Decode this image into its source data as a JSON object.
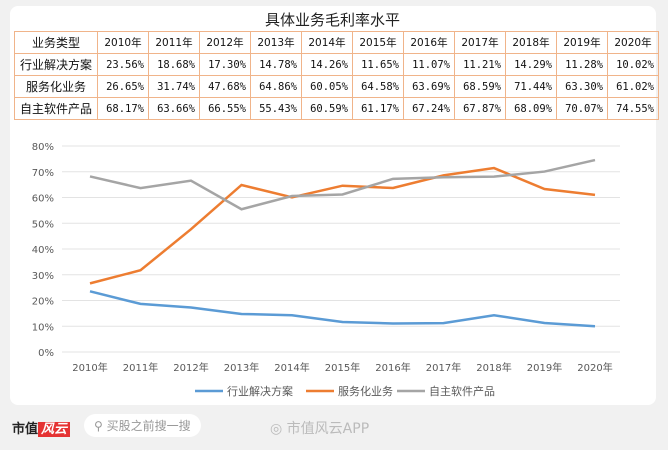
{
  "chart_data": {
    "type": "line",
    "title": "具体业务毛利率水平",
    "categories": [
      "2010年",
      "2011年",
      "2012年",
      "2013年",
      "2014年",
      "2015年",
      "2016年",
      "2017年",
      "2018年",
      "2019年",
      "2020年"
    ],
    "ylim": [
      0,
      80
    ],
    "yticks": [
      "0%",
      "10%",
      "20%",
      "30%",
      "40%",
      "50%",
      "60%",
      "70%",
      "80%"
    ],
    "grid": true,
    "legend": "bottom",
    "series": [
      {
        "name": "行业解决方案",
        "color": "#5b9bd5",
        "values": [
          23.56,
          18.68,
          17.3,
          14.78,
          14.26,
          11.65,
          11.07,
          11.21,
          14.29,
          11.28,
          10.02
        ]
      },
      {
        "name": "服务化业务",
        "color": "#ed7d31",
        "values": [
          26.65,
          31.74,
          47.68,
          64.86,
          60.05,
          64.58,
          63.69,
          68.59,
          71.44,
          63.3,
          61.02
        ]
      },
      {
        "name": "自主软件产品",
        "color": "#a5a5a5",
        "values": [
          68.17,
          63.66,
          66.55,
          55.43,
          60.59,
          61.17,
          67.24,
          67.87,
          68.09,
          70.07,
          74.55
        ]
      }
    ]
  },
  "table": {
    "header": "业务类型",
    "rows": [
      {
        "label": "行业解决方案",
        "cells": [
          "23.56%",
          "18.68%",
          "17.30%",
          "14.78%",
          "14.26%",
          "11.65%",
          "11.07%",
          "11.21%",
          "14.29%",
          "11.28%",
          "10.02%"
        ]
      },
      {
        "label": "服务化业务",
        "cells": [
          "26.65%",
          "31.74%",
          "47.68%",
          "64.86%",
          "60.05%",
          "64.58%",
          "63.69%",
          "68.59%",
          "71.44%",
          "63.30%",
          "61.02%"
        ]
      },
      {
        "label": "自主软件产品",
        "cells": [
          "68.17%",
          "63.66%",
          "66.55%",
          "55.43%",
          "60.59%",
          "61.17%",
          "67.24%",
          "67.87%",
          "68.09%",
          "70.07%",
          "74.55%"
        ]
      }
    ]
  },
  "footer": {
    "logo_text": "市值",
    "logo_badge": "风云",
    "search_placeholder": "买股之前搜一搜",
    "app_watermark": "市值风云APP"
  }
}
